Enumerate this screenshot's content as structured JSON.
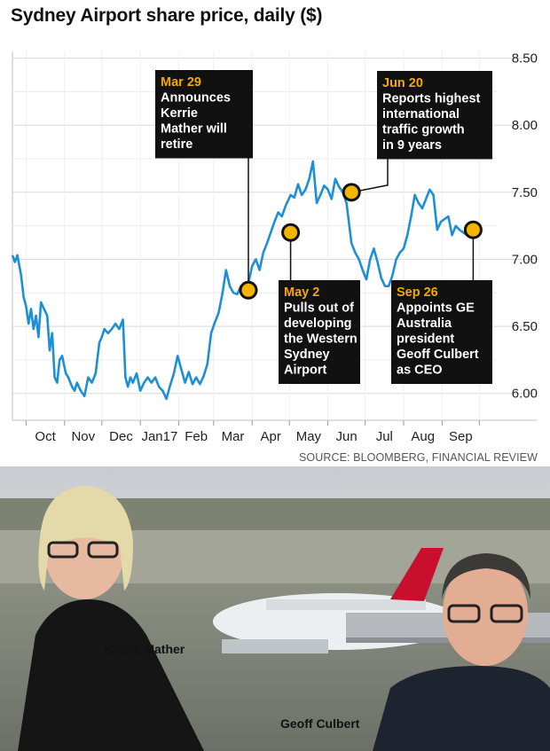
{
  "chart_data": {
    "type": "line",
    "title": "Sydney Airport share price, daily ($)",
    "source": "SOURCE: BLOOMBERG, FINANCIAL REVIEW",
    "x_tick_labels": [
      "Oct",
      "Nov",
      "Dec",
      "Jan17",
      "Feb",
      "Mar",
      "Apr",
      "May",
      "Jun",
      "Jul",
      "Aug",
      "Sep"
    ],
    "x_range": [
      "2016-09-20",
      "2017-10-15"
    ],
    "ylim": [
      5.8,
      8.55
    ],
    "y_ticks": [
      "8.50",
      "8.00",
      "7.50",
      "7.00",
      "6.50",
      "6.00"
    ],
    "grid": true,
    "series": [
      {
        "color": "#1d8fd6",
        "x": [
          "2016-09-20",
          "2016-09-22",
          "2016-09-24",
          "2016-09-27",
          "2016-09-29",
          "2016-10-01",
          "2016-10-03",
          "2016-10-05",
          "2016-10-07",
          "2016-10-09",
          "2016-10-11",
          "2016-10-13",
          "2016-10-16",
          "2016-10-18",
          "2016-10-20",
          "2016-10-22",
          "2016-10-24",
          "2016-10-26",
          "2016-10-28",
          "2016-10-30",
          "2016-11-02",
          "2016-11-04",
          "2016-11-07",
          "2016-11-09",
          "2016-11-11",
          "2016-11-14",
          "2016-11-17",
          "2016-11-20",
          "2016-11-23",
          "2016-11-26",
          "2016-11-29",
          "2016-12-01",
          "2016-12-03",
          "2016-12-06",
          "2016-12-09",
          "2016-12-12",
          "2016-12-15",
          "2016-12-18",
          "2016-12-20",
          "2016-12-22",
          "2016-12-24",
          "2016-12-26",
          "2016-12-29",
          "2017-01-01",
          "2017-01-04",
          "2017-01-07",
          "2017-01-10",
          "2017-01-13",
          "2017-01-16",
          "2017-01-19",
          "2017-01-22",
          "2017-01-25",
          "2017-01-28",
          "2017-01-31",
          "2017-02-03",
          "2017-02-06",
          "2017-02-09",
          "2017-02-12",
          "2017-02-15",
          "2017-02-18",
          "2017-02-21",
          "2017-02-24",
          "2017-02-27",
          "2017-03-02",
          "2017-03-05",
          "2017-03-08",
          "2017-03-11",
          "2017-03-14",
          "2017-03-17",
          "2017-03-20",
          "2017-03-23",
          "2017-03-26",
          "2017-03-29",
          "2017-04-01",
          "2017-04-04",
          "2017-04-07",
          "2017-04-10",
          "2017-04-13",
          "2017-04-16",
          "2017-04-19",
          "2017-04-22",
          "2017-04-25",
          "2017-04-28",
          "2017-05-02",
          "2017-05-05",
          "2017-05-08",
          "2017-05-11",
          "2017-05-14",
          "2017-05-17",
          "2017-05-20",
          "2017-05-23",
          "2017-05-26",
          "2017-05-29",
          "2017-06-01",
          "2017-06-04",
          "2017-06-07",
          "2017-06-10",
          "2017-06-13",
          "2017-06-16",
          "2017-06-20",
          "2017-06-23",
          "2017-06-26",
          "2017-06-29",
          "2017-07-02",
          "2017-07-05",
          "2017-07-08",
          "2017-07-11",
          "2017-07-14",
          "2017-07-17",
          "2017-07-20",
          "2017-07-23",
          "2017-07-26",
          "2017-07-29",
          "2017-08-01",
          "2017-08-04",
          "2017-08-07",
          "2017-08-10",
          "2017-08-13",
          "2017-08-16",
          "2017-08-19",
          "2017-08-22",
          "2017-08-25",
          "2017-08-28",
          "2017-08-31",
          "2017-09-03",
          "2017-09-06",
          "2017-09-09",
          "2017-09-12",
          "2017-09-15",
          "2017-09-18",
          "2017-09-21",
          "2017-09-26"
        ],
        "values": [
          7.03,
          6.98,
          7.03,
          6.88,
          6.72,
          6.65,
          6.52,
          6.63,
          6.48,
          6.58,
          6.42,
          6.68,
          6.62,
          6.58,
          6.32,
          6.45,
          6.12,
          6.08,
          6.25,
          6.28,
          6.15,
          6.12,
          6.05,
          6.02,
          6.08,
          6.02,
          5.98,
          6.12,
          6.08,
          6.15,
          6.38,
          6.42,
          6.48,
          6.45,
          6.48,
          6.52,
          6.48,
          6.55,
          6.12,
          6.05,
          6.12,
          6.08,
          6.15,
          6.02,
          6.08,
          6.12,
          6.08,
          6.12,
          6.05,
          6.02,
          5.96,
          6.06,
          6.15,
          6.28,
          6.18,
          6.08,
          6.16,
          6.07,
          6.12,
          6.07,
          6.13,
          6.22,
          6.45,
          6.53,
          6.6,
          6.74,
          6.92,
          6.8,
          6.75,
          6.74,
          6.8,
          6.78,
          6.82,
          6.95,
          7.0,
          6.92,
          7.05,
          7.12,
          7.2,
          7.28,
          7.35,
          7.32,
          7.4,
          7.48,
          7.46,
          7.56,
          7.48,
          7.52,
          7.6,
          7.73,
          7.42,
          7.48,
          7.55,
          7.52,
          7.45,
          7.6,
          7.54,
          7.5,
          7.42,
          7.12,
          7.05,
          7.0,
          6.92,
          6.85,
          7.0,
          7.08,
          6.98,
          6.86,
          6.8,
          6.8,
          6.88,
          7.0,
          7.05,
          7.08,
          7.18,
          7.32,
          7.48,
          7.42,
          7.38,
          7.45,
          7.52,
          7.48,
          7.22,
          7.28,
          7.3,
          7.32,
          7.18,
          7.25,
          7.22,
          7.2,
          7.18,
          7.22
        ]
      }
    ],
    "annotations": [
      {
        "date": "2017-03-29",
        "value": 6.77,
        "head": "Mar 29",
        "lines": [
          "Announces",
          "Kerrie",
          "Mather will",
          "retire"
        ]
      },
      {
        "date": "2017-05-02",
        "value": 7.2,
        "head": "May 2",
        "lines": [
          "Pulls out of",
          "developing",
          "the Western",
          "Sydney",
          "Airport"
        ]
      },
      {
        "date": "2017-06-20",
        "value": 7.5,
        "head": "Jun 20",
        "lines": [
          "Reports highest",
          "international",
          "traffic growth",
          "in 9 years"
        ]
      },
      {
        "date": "2017-09-26",
        "value": 7.22,
        "head": "Sep 26",
        "lines": [
          "Appoints GE",
          "Australia",
          "president",
          "Geoff Culbert",
          "as CEO"
        ]
      }
    ]
  },
  "photo": {
    "caption_left": "Kerrie Mather",
    "caption_right": "Geoff Culbert"
  }
}
